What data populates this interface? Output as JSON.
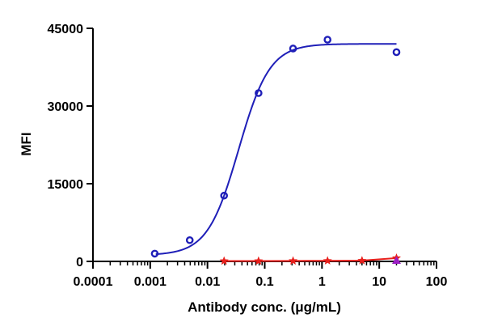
{
  "chart_data": {
    "type": "scatter",
    "xlabel": "Antibody conc. (μg/mL)",
    "ylabel": "MFI",
    "x_scale": "log",
    "xlim": [
      0.0001,
      100
    ],
    "ylim": [
      0,
      45000
    ],
    "x_tick_labels": [
      "0.0001",
      "0.001",
      "0.01",
      "0.1",
      "1",
      "10",
      "100"
    ],
    "y_tick_labels": [
      "0",
      "15000",
      "30000",
      "45000"
    ],
    "grid": false,
    "legend": "none",
    "series": [
      {
        "marker": "circle",
        "color": "#1f1fb8",
        "x": [
          0.0012,
          0.0049,
          0.0195,
          0.078,
          0.3125,
          1.25,
          20
        ],
        "y": [
          1500,
          4100,
          12700,
          32500,
          41100,
          42800,
          40400
        ],
        "fit": {
          "model": "4PL",
          "bottom": 1200,
          "top": 42000,
          "ec50": 0.035,
          "hill": 1.6
        }
      },
      {
        "marker": "star",
        "color": "#e8201c",
        "x": [
          0.0195,
          0.078,
          0.3125,
          1.25,
          5,
          20
        ],
        "y": [
          80,
          80,
          100,
          120,
          150,
          650
        ],
        "fit": {
          "model": "line"
        }
      },
      {
        "marker": "triangle",
        "color": "#9b1fc4",
        "x": [
          20
        ],
        "y": [
          80
        ]
      }
    ]
  }
}
